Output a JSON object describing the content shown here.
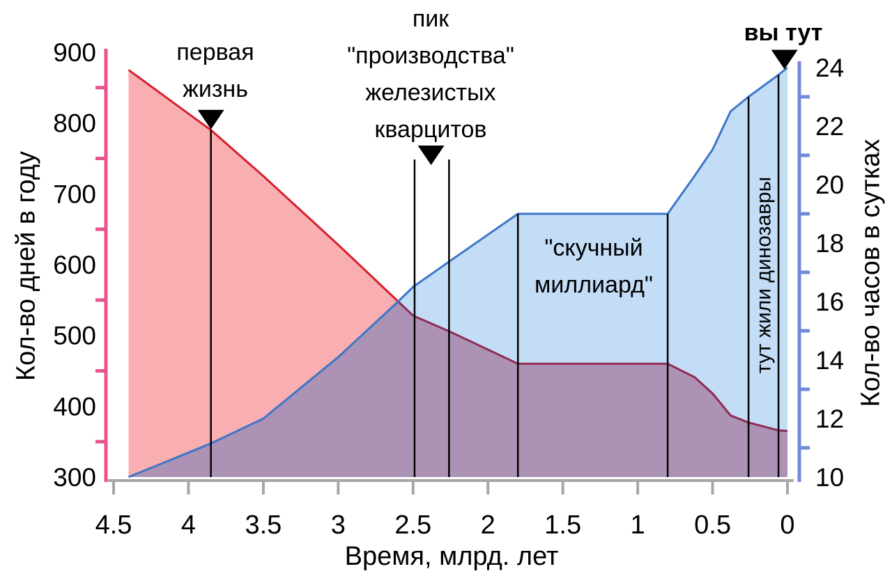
{
  "chart_data": {
    "type": "area",
    "title": "",
    "x_axis": {
      "label": "Время, млрд. лет",
      "ticks": [
        "4.5",
        "4",
        "3.5",
        "3",
        "2.5",
        "2",
        "1.5",
        "1",
        "0.5",
        "0"
      ],
      "range": [
        4.5,
        0
      ],
      "reversed": true,
      "color": "#a6a6a6"
    },
    "y_left": {
      "label": "Кол-во дней в году",
      "ticks": [
        900,
        800,
        700,
        600,
        500,
        400,
        300
      ],
      "minor_ticks": [
        850,
        750,
        650,
        550,
        450,
        350
      ],
      "range": [
        300,
        900
      ],
      "color": "#e8548f"
    },
    "y_right": {
      "label": "Кол-во часов в сутках",
      "ticks": [
        24,
        22,
        20,
        18,
        16,
        14,
        12,
        10
      ],
      "minor_ticks": [
        23,
        21,
        19,
        17,
        15,
        13,
        11
      ],
      "range": [
        10,
        24
      ],
      "color": "#7189dd"
    },
    "series": [
      {
        "name": "Кол-во дней в году",
        "axis": "left",
        "line_color": "#d5202c",
        "line_color_under_overlap": "#8e2d55",
        "fill_color": "#f9aeb1",
        "points": [
          [
            4.4,
            875
          ],
          [
            3.85,
            790
          ],
          [
            3.5,
            725
          ],
          [
            3.0,
            628
          ],
          [
            2.6,
            548
          ],
          [
            2.5,
            528
          ],
          [
            2.25,
            505
          ],
          [
            1.8,
            460
          ],
          [
            0.8,
            460
          ],
          [
            0.62,
            441
          ],
          [
            0.5,
            418
          ],
          [
            0.38,
            387
          ],
          [
            0.26,
            377
          ],
          [
            0.06,
            366
          ],
          [
            0,
            365
          ]
        ]
      },
      {
        "name": "Кол-во часов в сутках",
        "axis": "right",
        "line_color": "#3d76c8",
        "fill_color": "#c3ddf7",
        "points": [
          [
            4.4,
            10
          ],
          [
            3.85,
            11.15
          ],
          [
            3.5,
            12
          ],
          [
            3.0,
            14.1
          ],
          [
            2.6,
            16
          ],
          [
            2.5,
            16.5
          ],
          [
            2.25,
            17.4
          ],
          [
            1.8,
            19
          ],
          [
            0.8,
            19
          ],
          [
            0.62,
            20.3
          ],
          [
            0.5,
            21.2
          ],
          [
            0.38,
            22.5
          ],
          [
            0.26,
            23.0
          ],
          [
            0.06,
            23.75
          ],
          [
            0,
            24
          ]
        ]
      }
    ],
    "overlap_fill": "#ac92b4",
    "marker_color": "#000000",
    "annotations": [
      {
        "id": "first-life",
        "lines": [
          "первая",
          "жизнь"
        ],
        "t": 3.85,
        "marker": "triangle",
        "has_line": true
      },
      {
        "id": "bif-peak",
        "lines": [
          "пик",
          "\"производства\"",
          "железистых",
          "кварцитов"
        ],
        "t": 2.38,
        "marker": "triangle",
        "line_ts": [
          2.49,
          2.26
        ]
      },
      {
        "id": "boring-billion",
        "lines": [
          "\"скучный",
          "миллиард\""
        ],
        "t_range": [
          1.8,
          0.8
        ]
      },
      {
        "id": "dinosaurs",
        "lines": [
          "тут жили динозавры"
        ],
        "t_range": [
          0.26,
          0.06
        ]
      },
      {
        "id": "you-are-here",
        "lines": [
          "вы тут"
        ],
        "t": 0.02,
        "marker": "triangle",
        "bold": true
      }
    ]
  }
}
